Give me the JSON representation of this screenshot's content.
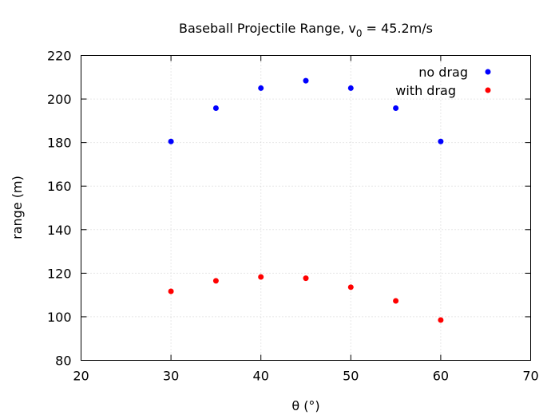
{
  "chart_data": {
    "type": "scatter",
    "title": "Baseball Projectile Range, v",
    "title_subscript": "0",
    "title_suffix": " = 45.2m/s",
    "xlabel": "θ (°)",
    "ylabel": "range (m)",
    "xlim": [
      20,
      70
    ],
    "ylim": [
      80,
      220
    ],
    "x_ticks": [
      20,
      30,
      40,
      50,
      60,
      70
    ],
    "y_ticks": [
      80,
      100,
      120,
      140,
      160,
      180,
      200,
      220
    ],
    "grid": true,
    "legend_position": "top-right",
    "series": [
      {
        "name": "no drag",
        "color": "#0000ff",
        "x": [
          30,
          35,
          40,
          45,
          50,
          55,
          60
        ],
        "y": [
          180.5,
          195.8,
          205.0,
          208.4,
          205.0,
          195.8,
          180.5
        ]
      },
      {
        "name": "with drag",
        "color": "#ff0000",
        "x": [
          30,
          35,
          40,
          45,
          50,
          55,
          60
        ],
        "y": [
          111.7,
          116.5,
          118.3,
          117.7,
          113.6,
          107.3,
          98.5
        ]
      }
    ]
  }
}
